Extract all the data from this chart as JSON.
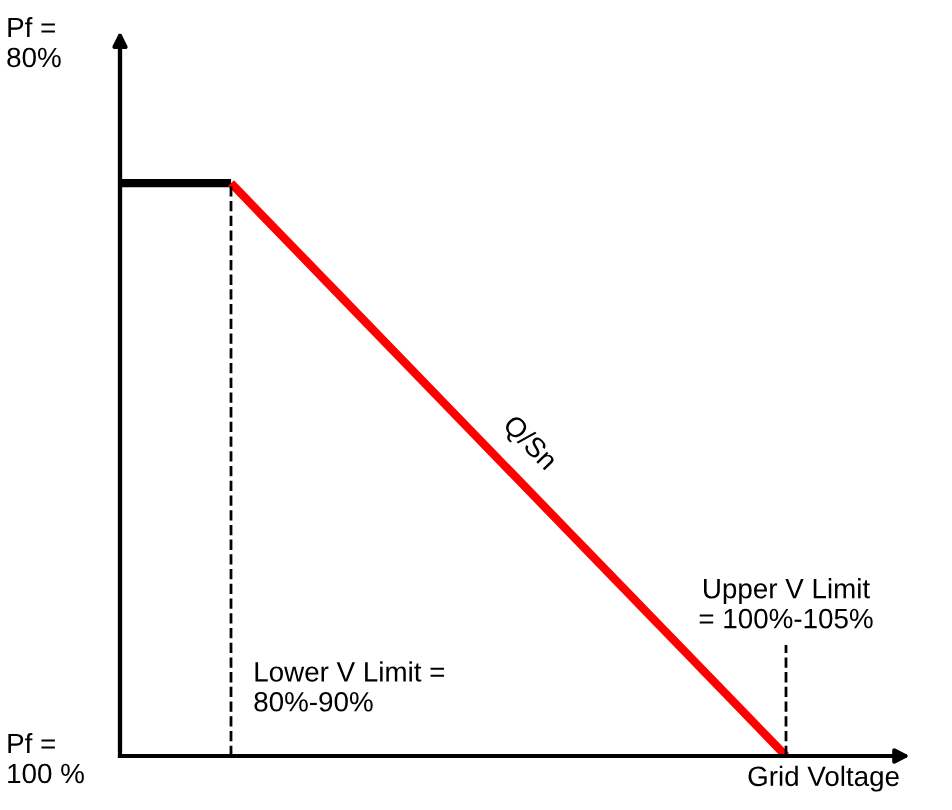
{
  "chart_data": {
    "type": "line",
    "xlabel": "Grid Voltage",
    "ylim": [
      100,
      80
    ],
    "yticks": [
      {
        "value": 80,
        "label": "Pf =\n80%"
      },
      {
        "value": 100,
        "label": "Pf =\n100 %"
      }
    ],
    "categories": [
      null,
      null,
      null,
      null,
      null,
      null,
      null
    ],
    "tick_labels": "y",
    "grid": false,
    "marker": "none",
    "line_style": "solid",
    "series": [
      {
        "color": "#000000",
        "values": [
          84,
          84,
          null,
          null,
          null,
          null,
          null
        ]
      },
      {
        "color": "#ff0000",
        "values": [
          null,
          84,
          87.2,
          90.4,
          93.6,
          96.8,
          100
        ]
      }
    ],
    "annotations": [
      "Lower V Limit =\n80%-90%",
      "Upper V Limit\n= 100%-105%",
      "Q/Sn"
    ]
  }
}
